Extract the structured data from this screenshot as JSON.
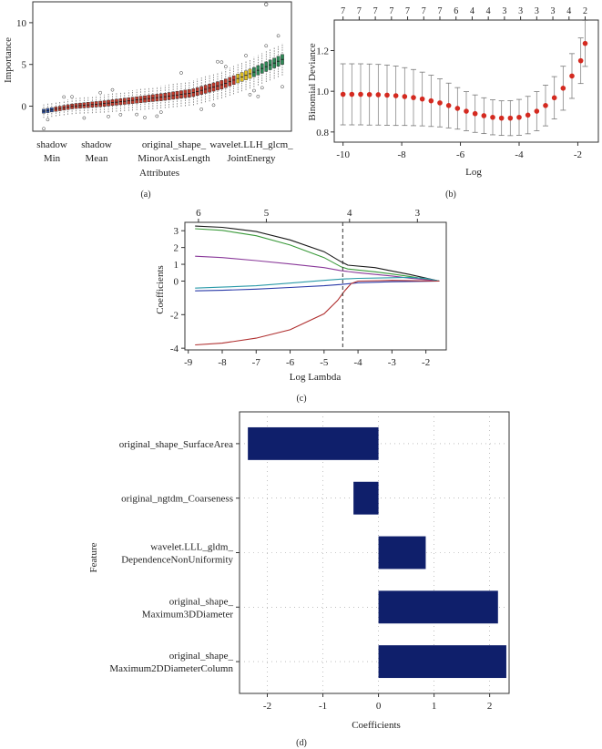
{
  "chart_data": [
    {
      "panel": "(a)",
      "type": "boxplot",
      "ylabel": "Importance",
      "xlabel": "Attributes",
      "ylim": [
        -3,
        12.5
      ],
      "yticks": [
        0,
        5,
        10
      ],
      "xtick_labels": [
        {
          "line1": "shadow",
          "line2": "Min"
        },
        {
          "line1": "shadow",
          "line2": "Mean"
        },
        {
          "line1": "original_shape_",
          "line2": "MinorAxisLength"
        },
        {
          "line1": "wavelet.LLH_glcm_",
          "line2": "JointEnergy"
        }
      ],
      "n_features": 60,
      "median_trend": [
        -0.6,
        0.0,
        0.3,
        0.7,
        1.1,
        1.6,
        2.6,
        4.0,
        5.6
      ],
      "outlier_max": 12.2,
      "colors": {
        "rejected": "#c0392b",
        "tentative": "#e0c020",
        "confirmed": "#2e8b57",
        "shadow": "#2d4fa0"
      }
    },
    {
      "panel": "(b)",
      "type": "errorbar",
      "ylabel": "Binomial Deviance",
      "xlabel": "Log",
      "xlim": [
        -10.3,
        -1.3
      ],
      "ylim": [
        0.75,
        1.35
      ],
      "xticks": [
        -10,
        -8,
        -6,
        -4,
        -2
      ],
      "yticks": [
        0.8,
        1.0,
        1.2
      ],
      "top_labels": [
        "7",
        "7",
        "7",
        "7",
        "7",
        "7",
        "7",
        "6",
        "4",
        "4",
        "3",
        "3",
        "3",
        "3",
        "4",
        "2"
      ],
      "x": [
        -10.0,
        -9.7,
        -9.4,
        -9.1,
        -8.8,
        -8.5,
        -8.2,
        -7.9,
        -7.6,
        -7.3,
        -7.0,
        -6.7,
        -6.4,
        -6.1,
        -5.8,
        -5.5,
        -5.2,
        -4.9,
        -4.6,
        -4.3,
        -4.0,
        -3.7,
        -3.4,
        -3.1,
        -2.8,
        -2.5,
        -2.2,
        -1.9,
        -1.75
      ],
      "mean": [
        0.985,
        0.985,
        0.985,
        0.984,
        0.983,
        0.981,
        0.978,
        0.974,
        0.969,
        0.962,
        0.953,
        0.943,
        0.93,
        0.916,
        0.902,
        0.89,
        0.88,
        0.872,
        0.868,
        0.868,
        0.872,
        0.883,
        0.902,
        0.93,
        0.968,
        1.015,
        1.075,
        1.15,
        1.235
      ],
      "err": [
        0.15,
        0.15,
        0.15,
        0.15,
        0.149,
        0.148,
        0.146,
        0.142,
        0.138,
        0.132,
        0.126,
        0.118,
        0.11,
        0.102,
        0.096,
        0.092,
        0.088,
        0.086,
        0.085,
        0.086,
        0.088,
        0.092,
        0.096,
        0.1,
        0.104,
        0.108,
        0.11,
        0.112,
        0.113
      ],
      "color": "#d42a20"
    },
    {
      "panel": "(c)",
      "type": "line",
      "ylabel": "Coefficients",
      "xlabel": "Log Lambda",
      "xlim": [
        -9.1,
        -1.4
      ],
      "ylim": [
        -4.1,
        3.5
      ],
      "xticks": [
        -9,
        -8,
        -7,
        -6,
        -5,
        -4,
        -3,
        -2
      ],
      "yticks": [
        -4,
        -2,
        0,
        1,
        2,
        3
      ],
      "top_ticks": [
        {
          "x": -8.7,
          "label": "6"
        },
        {
          "x": -6.7,
          "label": "5"
        },
        {
          "x": -4.25,
          "label": "4"
        },
        {
          "x": -2.25,
          "label": "3"
        }
      ],
      "vline_x": -4.45,
      "series": [
        {
          "name": "black",
          "color": "#1a1a1a",
          "points": [
            [
              -8.8,
              3.28
            ],
            [
              -8,
              3.2
            ],
            [
              -7,
              2.95
            ],
            [
              -6,
              2.45
            ],
            [
              -5,
              1.75
            ],
            [
              -4.5,
              1.15
            ],
            [
              -4.3,
              0.95
            ],
            [
              -3.5,
              0.8
            ],
            [
              -3,
              0.6
            ],
            [
              -2.5,
              0.4
            ],
            [
              -2,
              0.18
            ],
            [
              -1.6,
              0.0
            ]
          ]
        },
        {
          "name": "green",
          "color": "#3a9a3a",
          "points": [
            [
              -8.8,
              3.12
            ],
            [
              -8,
              3.02
            ],
            [
              -7,
              2.7
            ],
            [
              -6,
              2.15
            ],
            [
              -5,
              1.4
            ],
            [
              -4.5,
              0.85
            ],
            [
              -4.3,
              0.72
            ],
            [
              -3.5,
              0.55
            ],
            [
              -3,
              0.42
            ],
            [
              -2.5,
              0.28
            ],
            [
              -2,
              0.12
            ],
            [
              -1.6,
              0.0
            ]
          ]
        },
        {
          "name": "purple",
          "color": "#8a3a9a",
          "points": [
            [
              -8.8,
              1.48
            ],
            [
              -8,
              1.4
            ],
            [
              -7,
              1.22
            ],
            [
              -6,
              1.02
            ],
            [
              -5,
              0.8
            ],
            [
              -4.5,
              0.62
            ],
            [
              -4,
              0.5
            ],
            [
              -3,
              0.3
            ],
            [
              -2.5,
              0.18
            ],
            [
              -2,
              0.08
            ],
            [
              -1.6,
              0.0
            ]
          ]
        },
        {
          "name": "cyan",
          "color": "#2a9aa8",
          "points": [
            [
              -8.8,
              -0.42
            ],
            [
              -8,
              -0.36
            ],
            [
              -7,
              -0.28
            ],
            [
              -6,
              -0.12
            ],
            [
              -5,
              0.04
            ],
            [
              -4.5,
              0.12
            ],
            [
              -4,
              0.16
            ],
            [
              -3,
              0.2
            ],
            [
              -2.5,
              0.22
            ],
            [
              -2,
              0.16
            ],
            [
              -1.6,
              0.0
            ]
          ]
        },
        {
          "name": "blue",
          "color": "#2a3aa8",
          "points": [
            [
              -8.8,
              -0.58
            ],
            [
              -8,
              -0.55
            ],
            [
              -7,
              -0.48
            ],
            [
              -6,
              -0.38
            ],
            [
              -5,
              -0.28
            ],
            [
              -4.5,
              -0.2
            ],
            [
              -4,
              -0.1
            ],
            [
              -3,
              -0.04
            ],
            [
              -2,
              -0.01
            ],
            [
              -1.6,
              0.0
            ]
          ]
        },
        {
          "name": "red",
          "color": "#b03030",
          "points": [
            [
              -8.8,
              -3.8
            ],
            [
              -8,
              -3.7
            ],
            [
              -7,
              -3.4
            ],
            [
              -6,
              -2.9
            ],
            [
              -5,
              -1.95
            ],
            [
              -4.6,
              -1.15
            ],
            [
              -4.4,
              -0.6
            ],
            [
              -4.2,
              -0.15
            ],
            [
              -4,
              0.0
            ],
            [
              -3,
              0.04
            ],
            [
              -2,
              0.01
            ],
            [
              -1.6,
              0.0
            ]
          ]
        }
      ]
    },
    {
      "panel": "(d)",
      "type": "bar-horizontal",
      "ylabel": "Feature",
      "xlabel": "Coefficients",
      "xlim": [
        -2.5,
        2.35
      ],
      "xticks": [
        -2,
        -1,
        0,
        1,
        2
      ],
      "tick_labels": [
        "-2",
        "-1",
        "0",
        "1",
        "2"
      ],
      "bar_color": "#0f1f6b",
      "bars": [
        {
          "label_lines": [
            "original_shape_SurfaceArea"
          ],
          "value": -2.35
        },
        {
          "label_lines": [
            "original_ngtdm_Coarseness"
          ],
          "value": -0.45
        },
        {
          "label_lines": [
            "wavelet.LLL_gldm_",
            "DependenceNonUniformity"
          ],
          "value": 0.85
        },
        {
          "label_lines": [
            "original_shape_",
            "Maximum3DDiameter"
          ],
          "value": 2.15
        },
        {
          "label_lines": [
            "original_shape_",
            "Maximum2DDiameterColumn"
          ],
          "value": 2.3
        }
      ]
    }
  ],
  "captions": {
    "a": "(a)",
    "b": "(b)",
    "c": "(c)",
    "d": "(d)"
  }
}
